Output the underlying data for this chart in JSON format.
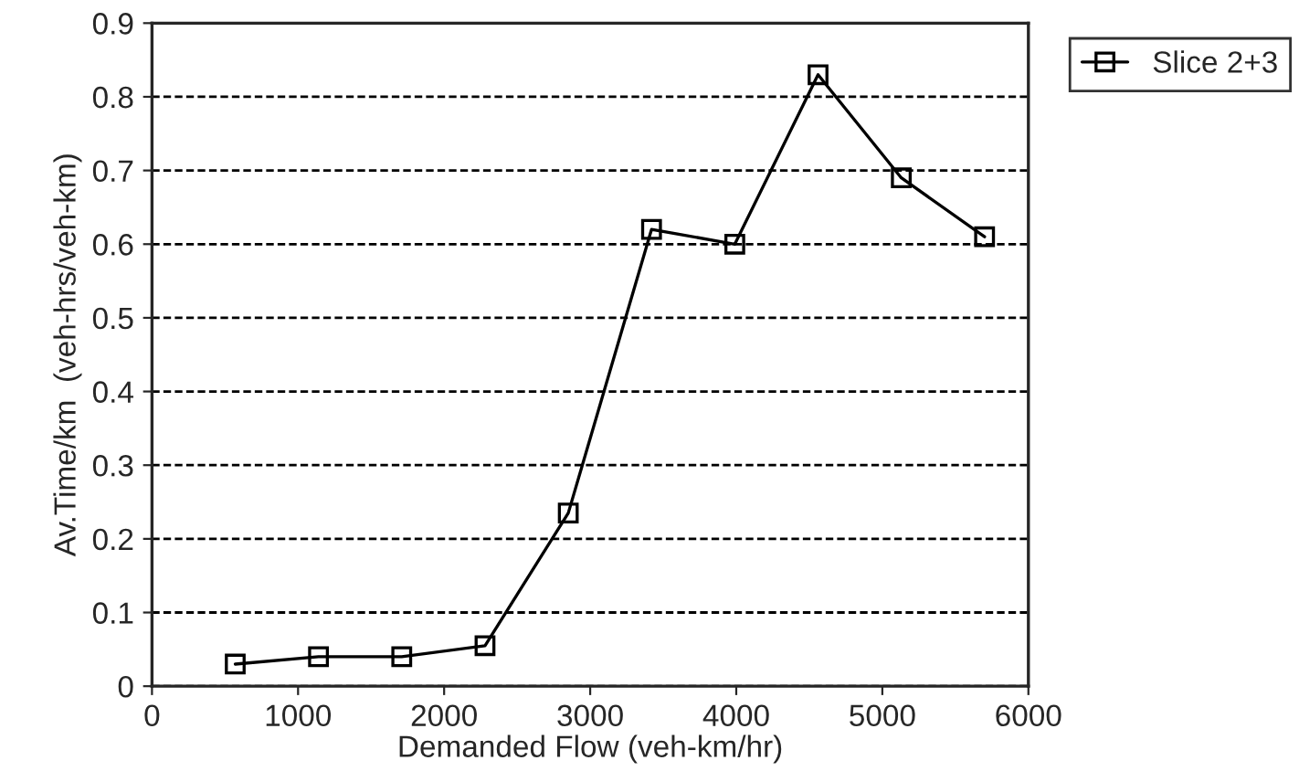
{
  "chart_data": {
    "type": "line",
    "xlabel": "Demanded Flow (veh-km/hr)",
    "ylabel": "Av.Time/km  (veh-hrs/veh-km)",
    "x": [
      570,
      1140,
      1710,
      2280,
      2850,
      3420,
      3990,
      4560,
      5130,
      5700
    ],
    "series": [
      {
        "name": "Slice 2+3",
        "color": "#000000",
        "values": [
          0.03,
          0.04,
          0.04,
          0.055,
          0.235,
          0.62,
          0.6,
          0.83,
          0.69,
          0.61
        ]
      }
    ],
    "xlim": [
      0,
      6000
    ],
    "xticks": [
      0,
      1000,
      2000,
      3000,
      4000,
      5000,
      6000
    ],
    "ylim": [
      0,
      0.9
    ],
    "yticks": [
      {
        "value": 0,
        "label": "0"
      },
      0.1,
      0.2,
      0.3,
      0.4,
      0.5,
      0.6,
      0.7,
      0.8,
      0.9
    ],
    "grid": "y",
    "legend": "top right",
    "marker": "square",
    "line_style": "solid"
  }
}
